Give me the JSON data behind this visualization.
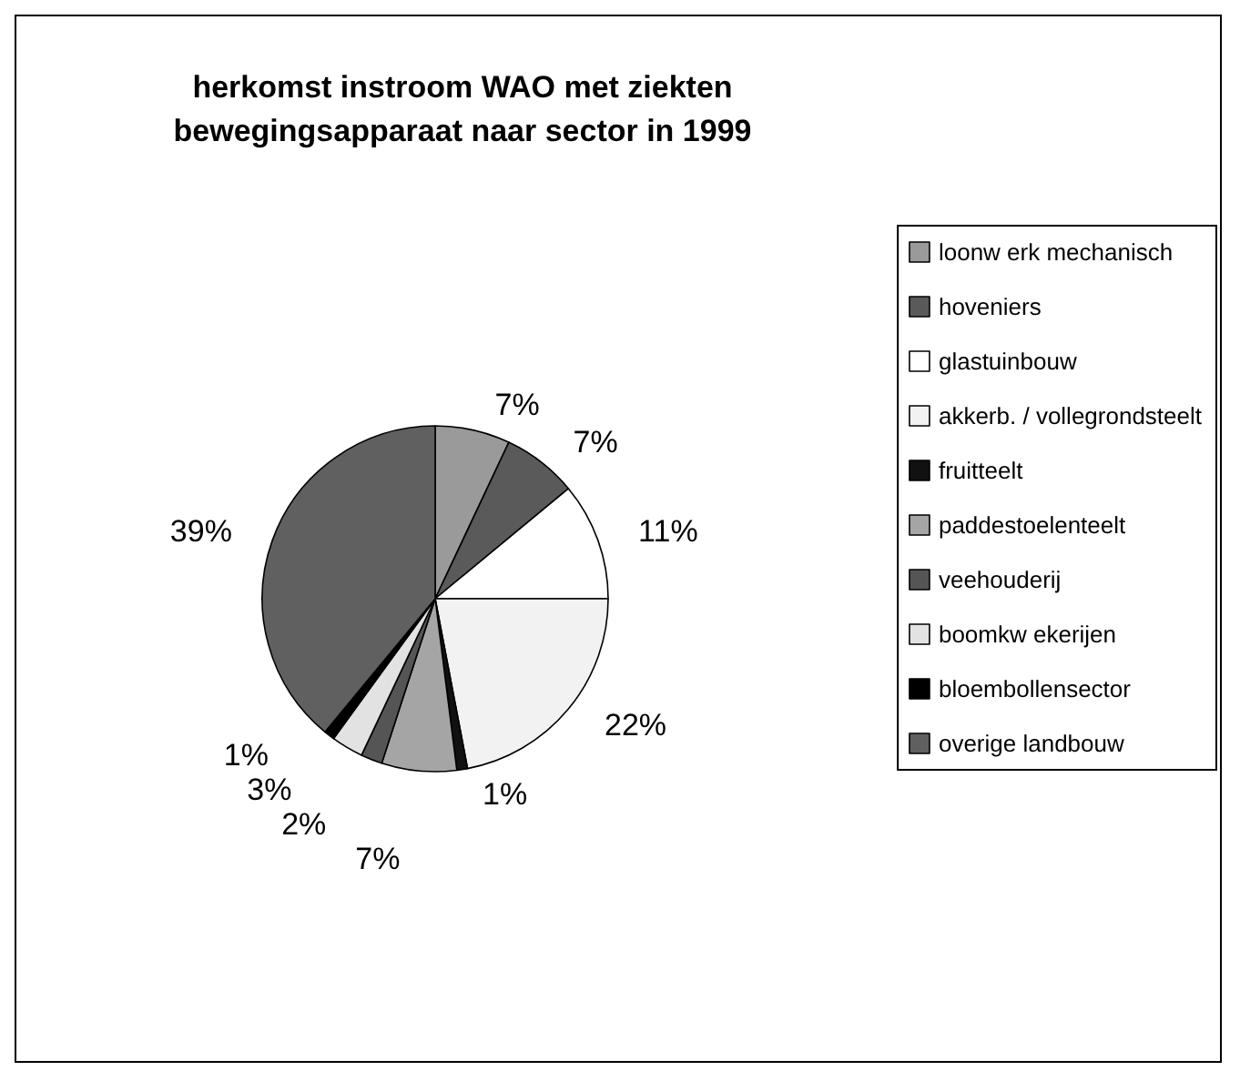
{
  "chart_data": {
    "type": "pie",
    "title": "herkomst instroom WAO met ziekten\nbewegingsapparaat naar sector in 1999",
    "categories": [
      "loonw erk mechanisch",
      "hoveniers",
      "glastuinbouw",
      "akkerb. / vollegrondsteelt",
      "fruitteelt",
      "paddestoelenteelt",
      "veehouderij",
      "boomkw ekerijen",
      "bloembollensector",
      "overige landbouw"
    ],
    "values": [
      7,
      7,
      11,
      22,
      1,
      7,
      2,
      3,
      1,
      39
    ],
    "colors": [
      "#9a9a9a",
      "#5a5a5a",
      "#ffffff",
      "#f2f2f2",
      "#111111",
      "#a5a5a5",
      "#555555",
      "#e2e2e2",
      "#000000",
      "#606060"
    ],
    "value_labels": [
      "7%",
      "7%",
      "11%",
      "22%",
      "1%",
      "7%",
      "2%",
      "3%",
      "1%",
      "39%"
    ],
    "legend": "right"
  }
}
